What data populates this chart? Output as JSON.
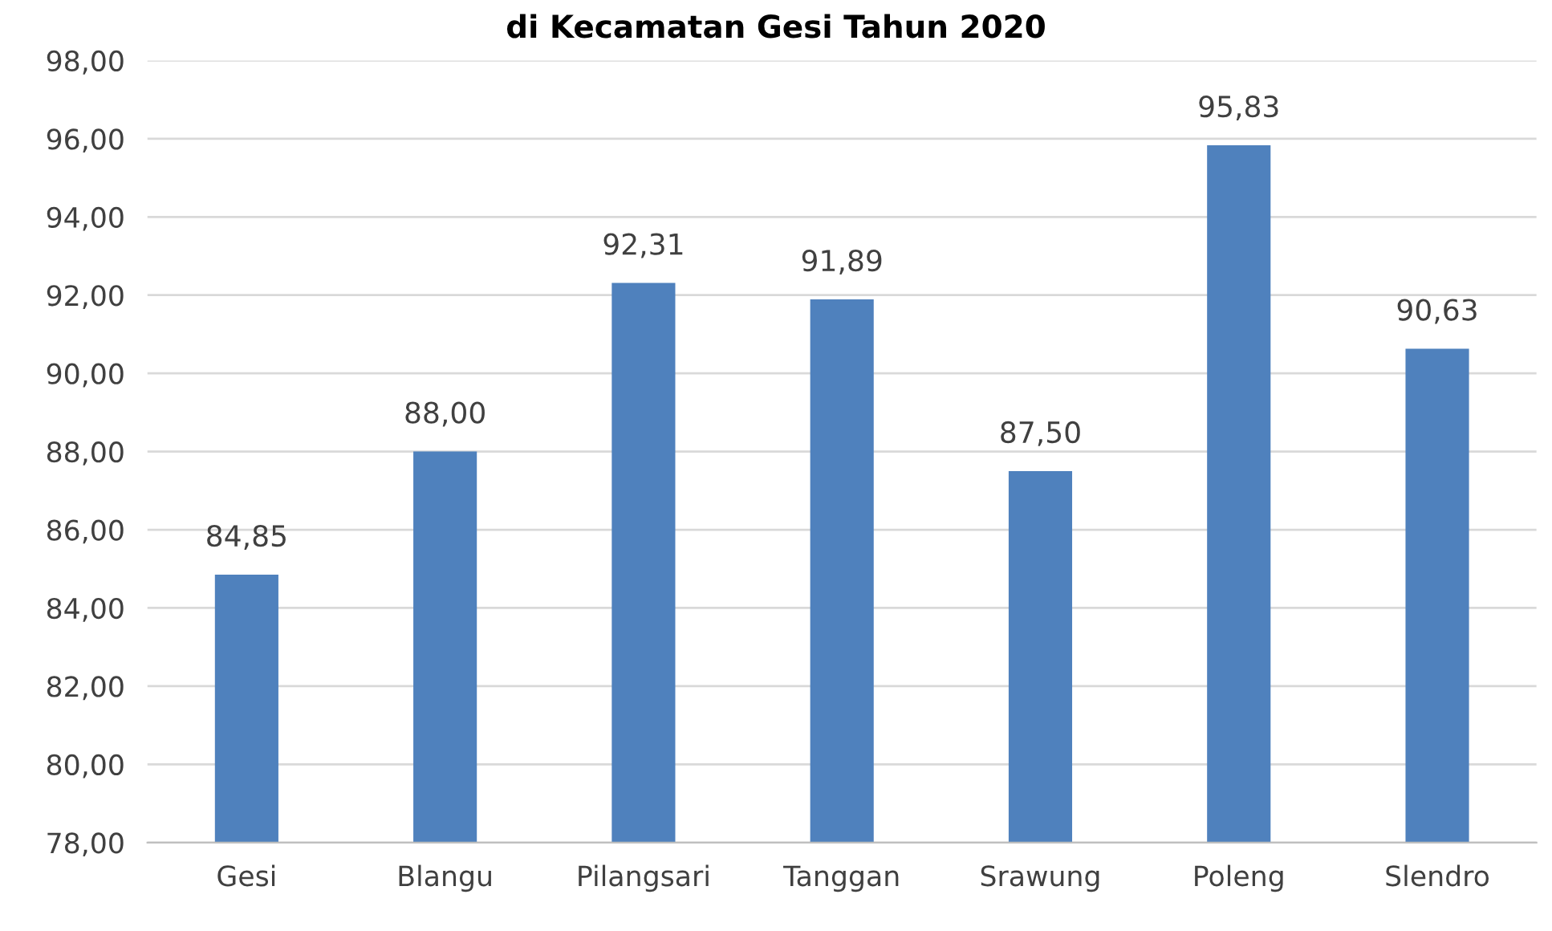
{
  "chart_data": {
    "type": "bar",
    "title": "di Kecamatan Gesi Tahun 2020",
    "categories": [
      "Gesi",
      "Blangu",
      "Pilangsari",
      "Tanggan",
      "Srawung",
      "Poleng",
      "Slendro"
    ],
    "values": [
      84.85,
      88.0,
      92.31,
      91.89,
      87.5,
      95.83,
      90.63
    ],
    "value_labels": [
      "84,85",
      "88,00",
      "92,31",
      "91,89",
      "87,50",
      "95,83",
      "90,63"
    ],
    "color": "#4f81bd",
    "ylim": [
      78,
      98
    ],
    "yticks": [
      {
        "value": 78,
        "label": "78,00"
      },
      {
        "value": 80,
        "label": "80,00"
      },
      {
        "value": 82,
        "label": "82,00"
      },
      {
        "value": 84,
        "label": "84,00"
      },
      {
        "value": 86,
        "label": "86,00"
      },
      {
        "value": 88,
        "label": "88,00"
      },
      {
        "value": 90,
        "label": "90,00"
      },
      {
        "value": 92,
        "label": "92,00"
      },
      {
        "value": 94,
        "label": "94,00"
      },
      {
        "value": 96,
        "label": "96,00"
      },
      {
        "value": 98,
        "label": "98,00"
      }
    ],
    "grid": "y",
    "legend": false
  }
}
